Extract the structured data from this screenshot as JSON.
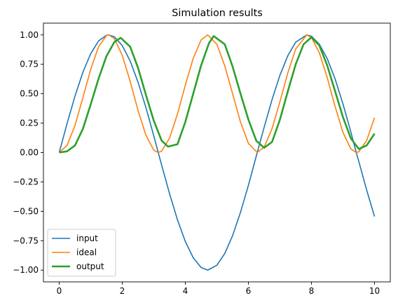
{
  "chart_data": {
    "type": "line",
    "title": "Simulation results",
    "xlabel": "",
    "ylabel": "",
    "xlim": [
      -0.5,
      10.5
    ],
    "ylim": [
      -1.1,
      1.1
    ],
    "xticks": [
      0,
      2,
      4,
      6,
      8,
      10
    ],
    "xtick_labels": [
      "0",
      "2",
      "4",
      "6",
      "8",
      "10"
    ],
    "yticks": [
      1.0,
      0.75,
      0.5,
      0.25,
      0.0,
      -0.25,
      -0.5,
      -0.75,
      -1.0
    ],
    "ytick_labels": [
      "1.00",
      "0.75",
      "0.50",
      "0.25",
      "0.00",
      "−0.25",
      "−0.50",
      "−0.75",
      "−1.00"
    ],
    "grid": false,
    "legend_position": "lower-left",
    "series": [
      {
        "name": "input",
        "color": "#1f77b4",
        "x": [
          0,
          0.25,
          0.5,
          0.75,
          1.0,
          1.25,
          1.5,
          1.57,
          1.75,
          2.0,
          2.25,
          2.5,
          2.75,
          3.0,
          3.14,
          3.25,
          3.5,
          3.75,
          4.0,
          4.25,
          4.5,
          4.71,
          5.0,
          5.25,
          5.5,
          5.75,
          6.0,
          6.28,
          6.5,
          6.75,
          7.0,
          7.25,
          7.5,
          7.85,
          8.0,
          8.25,
          8.5,
          8.75,
          9.0,
          9.25,
          9.42,
          9.5,
          9.75,
          10.0
        ],
        "y": [
          0.0,
          0.247,
          0.479,
          0.682,
          0.841,
          0.949,
          0.997,
          1.0,
          0.984,
          0.909,
          0.778,
          0.598,
          0.382,
          0.141,
          0.0,
          -0.108,
          -0.351,
          -0.572,
          -0.757,
          -0.895,
          -0.978,
          -1.0,
          -0.959,
          -0.859,
          -0.706,
          -0.508,
          -0.279,
          0.0,
          0.215,
          0.45,
          0.657,
          0.823,
          0.938,
          1.0,
          0.989,
          0.921,
          0.798,
          0.625,
          0.412,
          0.174,
          0.0,
          -0.075,
          -0.319,
          -0.544
        ]
      },
      {
        "name": "ideal",
        "color": "#ff7f0e",
        "x": [
          0,
          0.25,
          0.5,
          0.75,
          1.0,
          1.25,
          1.5,
          1.57,
          1.75,
          2.0,
          2.25,
          2.5,
          2.75,
          3.0,
          3.14,
          3.25,
          3.5,
          3.75,
          4.0,
          4.25,
          4.5,
          4.71,
          5.0,
          5.25,
          5.5,
          5.75,
          6.0,
          6.28,
          6.5,
          6.75,
          7.0,
          7.25,
          7.5,
          7.85,
          8.0,
          8.25,
          8.5,
          8.75,
          9.0,
          9.25,
          9.42,
          9.5,
          9.75,
          10.0
        ],
        "y": [
          0.0,
          0.061,
          0.23,
          0.465,
          0.708,
          0.9,
          0.995,
          1.0,
          0.968,
          0.826,
          0.605,
          0.358,
          0.146,
          0.02,
          0.0,
          0.012,
          0.123,
          0.327,
          0.573,
          0.801,
          0.957,
          1.0,
          0.92,
          0.737,
          0.498,
          0.258,
          0.078,
          0.0,
          0.046,
          0.203,
          0.432,
          0.677,
          0.88,
          1.0,
          0.978,
          0.848,
          0.637,
          0.391,
          0.17,
          0.03,
          0.0,
          0.006,
          0.102,
          0.296
        ]
      },
      {
        "name": "output",
        "color": "#2ca02c",
        "x": [
          0,
          0.25,
          0.5,
          0.75,
          1.0,
          1.25,
          1.5,
          1.75,
          1.95,
          2.25,
          2.5,
          2.75,
          3.0,
          3.25,
          3.45,
          3.75,
          4.0,
          4.25,
          4.5,
          4.75,
          4.9,
          5.25,
          5.5,
          5.75,
          6.0,
          6.25,
          6.5,
          6.75,
          7.0,
          7.25,
          7.5,
          7.75,
          8.0,
          8.25,
          8.5,
          8.75,
          9.0,
          9.25,
          9.5,
          9.75,
          10.0
        ],
        "y": [
          0.0,
          0.01,
          0.06,
          0.2,
          0.41,
          0.63,
          0.82,
          0.94,
          0.975,
          0.9,
          0.72,
          0.49,
          0.27,
          0.1,
          0.05,
          0.07,
          0.26,
          0.5,
          0.74,
          0.93,
          0.99,
          0.92,
          0.73,
          0.5,
          0.28,
          0.1,
          0.04,
          0.09,
          0.28,
          0.52,
          0.75,
          0.92,
          0.98,
          0.91,
          0.74,
          0.52,
          0.3,
          0.12,
          0.03,
          0.06,
          0.16
        ]
      }
    ]
  }
}
